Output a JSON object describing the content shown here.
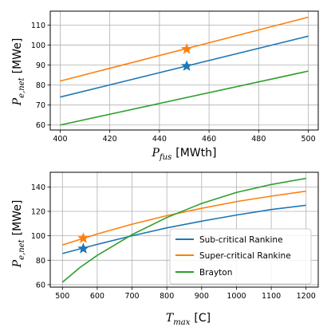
{
  "chart_data": [
    {
      "type": "line",
      "x_label_sym": "P",
      "x_label_sub": "fus",
      "x_label_unit": "[MWth]",
      "y_label_sym": "P",
      "y_label_sub": "e,net",
      "y_label_unit": "[MWe]",
      "xlim": [
        396,
        504
      ],
      "ylim": [
        57.5,
        117
      ],
      "x_ticks": [
        400,
        420,
        440,
        460,
        480,
        500
      ],
      "y_ticks": [
        60,
        70,
        80,
        90,
        100,
        110
      ],
      "grid": true,
      "series": [
        {
          "key": "sub",
          "color": "#1f77b4",
          "x": [
            400,
            500
          ],
          "y": [
            74,
            104.5
          ]
        },
        {
          "key": "super",
          "color": "#ff7f0e",
          "x": [
            400,
            500
          ],
          "y": [
            82,
            114
          ]
        },
        {
          "key": "brayton",
          "color": "#2ca02c",
          "x": [
            400,
            500
          ],
          "y": [
            60,
            87
          ]
        }
      ],
      "markers": [
        {
          "series": "super",
          "x": 451,
          "y": 98
        },
        {
          "series": "sub",
          "x": 451,
          "y": 89.5
        }
      ]
    },
    {
      "type": "line",
      "x_label_sym": "T",
      "x_label_sub": "max",
      "x_label_unit": "[C]",
      "y_label_sym": "P",
      "y_label_sub": "e,net",
      "y_label_unit": "[MWe]",
      "xlim": [
        465,
        1235
      ],
      "ylim": [
        58,
        152
      ],
      "x_ticks": [
        500,
        600,
        700,
        800,
        900,
        1000,
        1100,
        1200
      ],
      "y_ticks": [
        60,
        80,
        100,
        120,
        140
      ],
      "grid": true,
      "legend_position": "lower-right",
      "series": [
        {
          "key": "sub",
          "name": "Sub-critical Rankine",
          "color": "#1f77b4",
          "x": [
            500,
            600,
            700,
            800,
            900,
            1000,
            1100,
            1200
          ],
          "y": [
            85.5,
            93,
            100,
            106.5,
            112,
            117,
            121.5,
            125
          ]
        },
        {
          "key": "super",
          "name": "Super-critical Rankine",
          "color": "#ff7f0e",
          "x": [
            500,
            600,
            700,
            800,
            900,
            1000,
            1100,
            1200
          ],
          "y": [
            92.5,
            101.5,
            109.5,
            116.5,
            122.5,
            128,
            132.5,
            136.5
          ]
        },
        {
          "key": "brayton",
          "name": "Brayton",
          "color": "#2ca02c",
          "x": [
            500,
            550,
            600,
            700,
            800,
            900,
            1000,
            1100,
            1200
          ],
          "y": [
            62,
            74,
            84,
            101,
            115,
            126.5,
            135.5,
            142,
            147
          ]
        }
      ],
      "markers": [
        {
          "series": "super",
          "x": 560,
          "y": 98
        },
        {
          "series": "sub",
          "x": 560,
          "y": 89.5
        }
      ]
    }
  ]
}
